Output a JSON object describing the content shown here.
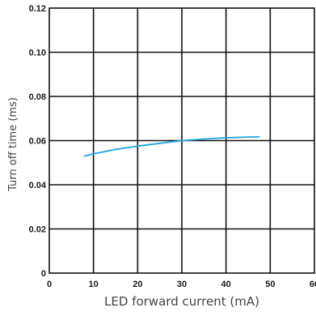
{
  "chart_data": {
    "type": "line",
    "xlabel": "LED forward current (mA)",
    "ylabel": "Turn off time (ms)",
    "xlim": [
      0,
      60
    ],
    "ylim": [
      0,
      0.12
    ],
    "x_ticks": [
      "0",
      "10",
      "20",
      "30",
      "40",
      "50",
      "60"
    ],
    "y_ticks": [
      "0",
      "0.02",
      "0.04",
      "0.06",
      "0.08",
      "0.10",
      "0.12"
    ],
    "grid": true,
    "series": [
      {
        "color": "#1ea5df",
        "x": [
          8,
          10,
          15,
          20,
          25,
          30,
          35,
          40,
          45,
          47.5
        ],
        "y": [
          0.053,
          0.054,
          0.056,
          0.0575,
          0.0588,
          0.06,
          0.0607,
          0.0613,
          0.0616,
          0.0617
        ]
      }
    ]
  }
}
